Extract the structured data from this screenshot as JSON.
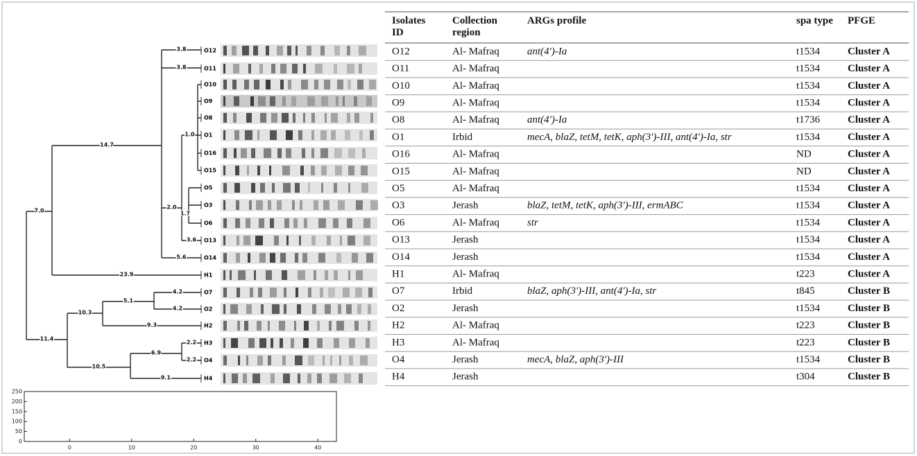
{
  "dendrogram": {
    "leaves": [
      "O12",
      "O11",
      "O10",
      "O9",
      "O8",
      "O1",
      "O16",
      "O15",
      "O5",
      "O3",
      "O6",
      "O13",
      "O14",
      "H1",
      "O7",
      "O2",
      "H2",
      "H3",
      "O4",
      "H4"
    ],
    "branch_labels": [
      "7.0",
      "11.4",
      "14.7",
      "23.9",
      "3.8",
      "3.8",
      "2.0",
      "5.6",
      "1.0",
      "1.7",
      "3.6",
      "10.3",
      "10.5",
      "5.1",
      "9.3",
      "4.2",
      "4.2",
      "6.9",
      "9.1",
      "2.2",
      "2.2"
    ]
  },
  "axis_panel": {
    "xlim": [
      -7.3,
      43
    ],
    "ylim": [
      0,
      250
    ],
    "xticks": [
      0,
      10,
      20,
      30,
      40
    ],
    "yticks": [
      0,
      50,
      100,
      150,
      200,
      250
    ]
  },
  "table": {
    "headers": [
      "Isolates ID",
      "Collection region",
      "ARGs profile",
      "spa type",
      "PFGE"
    ],
    "rows": [
      {
        "id": "O12",
        "region": "Al- Mafraq",
        "args": "ant(4')-Ia",
        "spa": "t1534",
        "pfge": "Cluster A"
      },
      {
        "id": "O11",
        "region": "Al- Mafraq",
        "spa": "t1534",
        "pfge": "Cluster A"
      },
      {
        "id": "O10",
        "region": "Al- Mafraq",
        "spa": "t1534",
        "pfge": "Cluster A"
      },
      {
        "id": "O9",
        "region": "Al- Mafraq",
        "spa": "t1534",
        "pfge": "Cluster A"
      },
      {
        "id": "O8",
        "region": "Al- Mafraq",
        "args": "ant(4')-Ia",
        "spa": "t1736",
        "pfge": "Cluster A"
      },
      {
        "id": "O1",
        "region": "Irbid",
        "args": "mecA, blaZ, tetM, tetK,  aph(3')-III, ant(4')-Ia, str",
        "spa": "t1534",
        "pfge": "Cluster A"
      },
      {
        "id": "O16",
        "region": "Al- Mafraq",
        "spa": "ND",
        "pfge": "Cluster A"
      },
      {
        "id": "O15",
        "region": "Al- Mafraq",
        "spa": "ND",
        "pfge": "Cluster A"
      },
      {
        "id": "O5",
        "region": "Al- Mafraq",
        "spa": "t1534",
        "pfge": "Cluster A"
      },
      {
        "id": "O3",
        "region": "Jerash",
        "args": "blaZ, tetM, tetK, aph(3')-III,  ermABC",
        "spa": "t1534",
        "pfge": "Cluster A"
      },
      {
        "id": "O6",
        "region": "Al- Mafraq",
        "args": "str",
        "spa": "t1534",
        "pfge": "Cluster A"
      },
      {
        "id": "O13",
        "region": "Jerash",
        "spa": "t1534",
        "pfge": "Cluster A"
      },
      {
        "id": "O14",
        "region": "Jerash",
        "spa": "t1534",
        "pfge": "Cluster A"
      },
      {
        "id": "H1",
        "region": "Al- Mafraq",
        "spa": "t223",
        "pfge": "Cluster A"
      },
      {
        "id": "O7",
        "region": "Irbid",
        "args": "blaZ,  aph(3')-III, ant(4')-Ia, str",
        "spa": "t845",
        "pfge": "Cluster B"
      },
      {
        "id": "O2",
        "region": "Jerash",
        "spa": "t1534",
        "pfge": "Cluster B"
      },
      {
        "id": "H2",
        "region": "Al- Mafraq",
        "spa": "t223",
        "pfge": "Cluster B"
      },
      {
        "id": "H3",
        "region": "Al- Mafraq",
        "spa": "t223",
        "pfge": "Cluster B"
      },
      {
        "id": "O4",
        "region": "Jerash",
        "args": "mecA, blaZ,  aph(3')-III",
        "spa": "t1534",
        "pfge": "Cluster B"
      },
      {
        "id": "H4",
        "region": "Jerash",
        "spa": "t304",
        "pfge": "Cluster B"
      }
    ]
  }
}
